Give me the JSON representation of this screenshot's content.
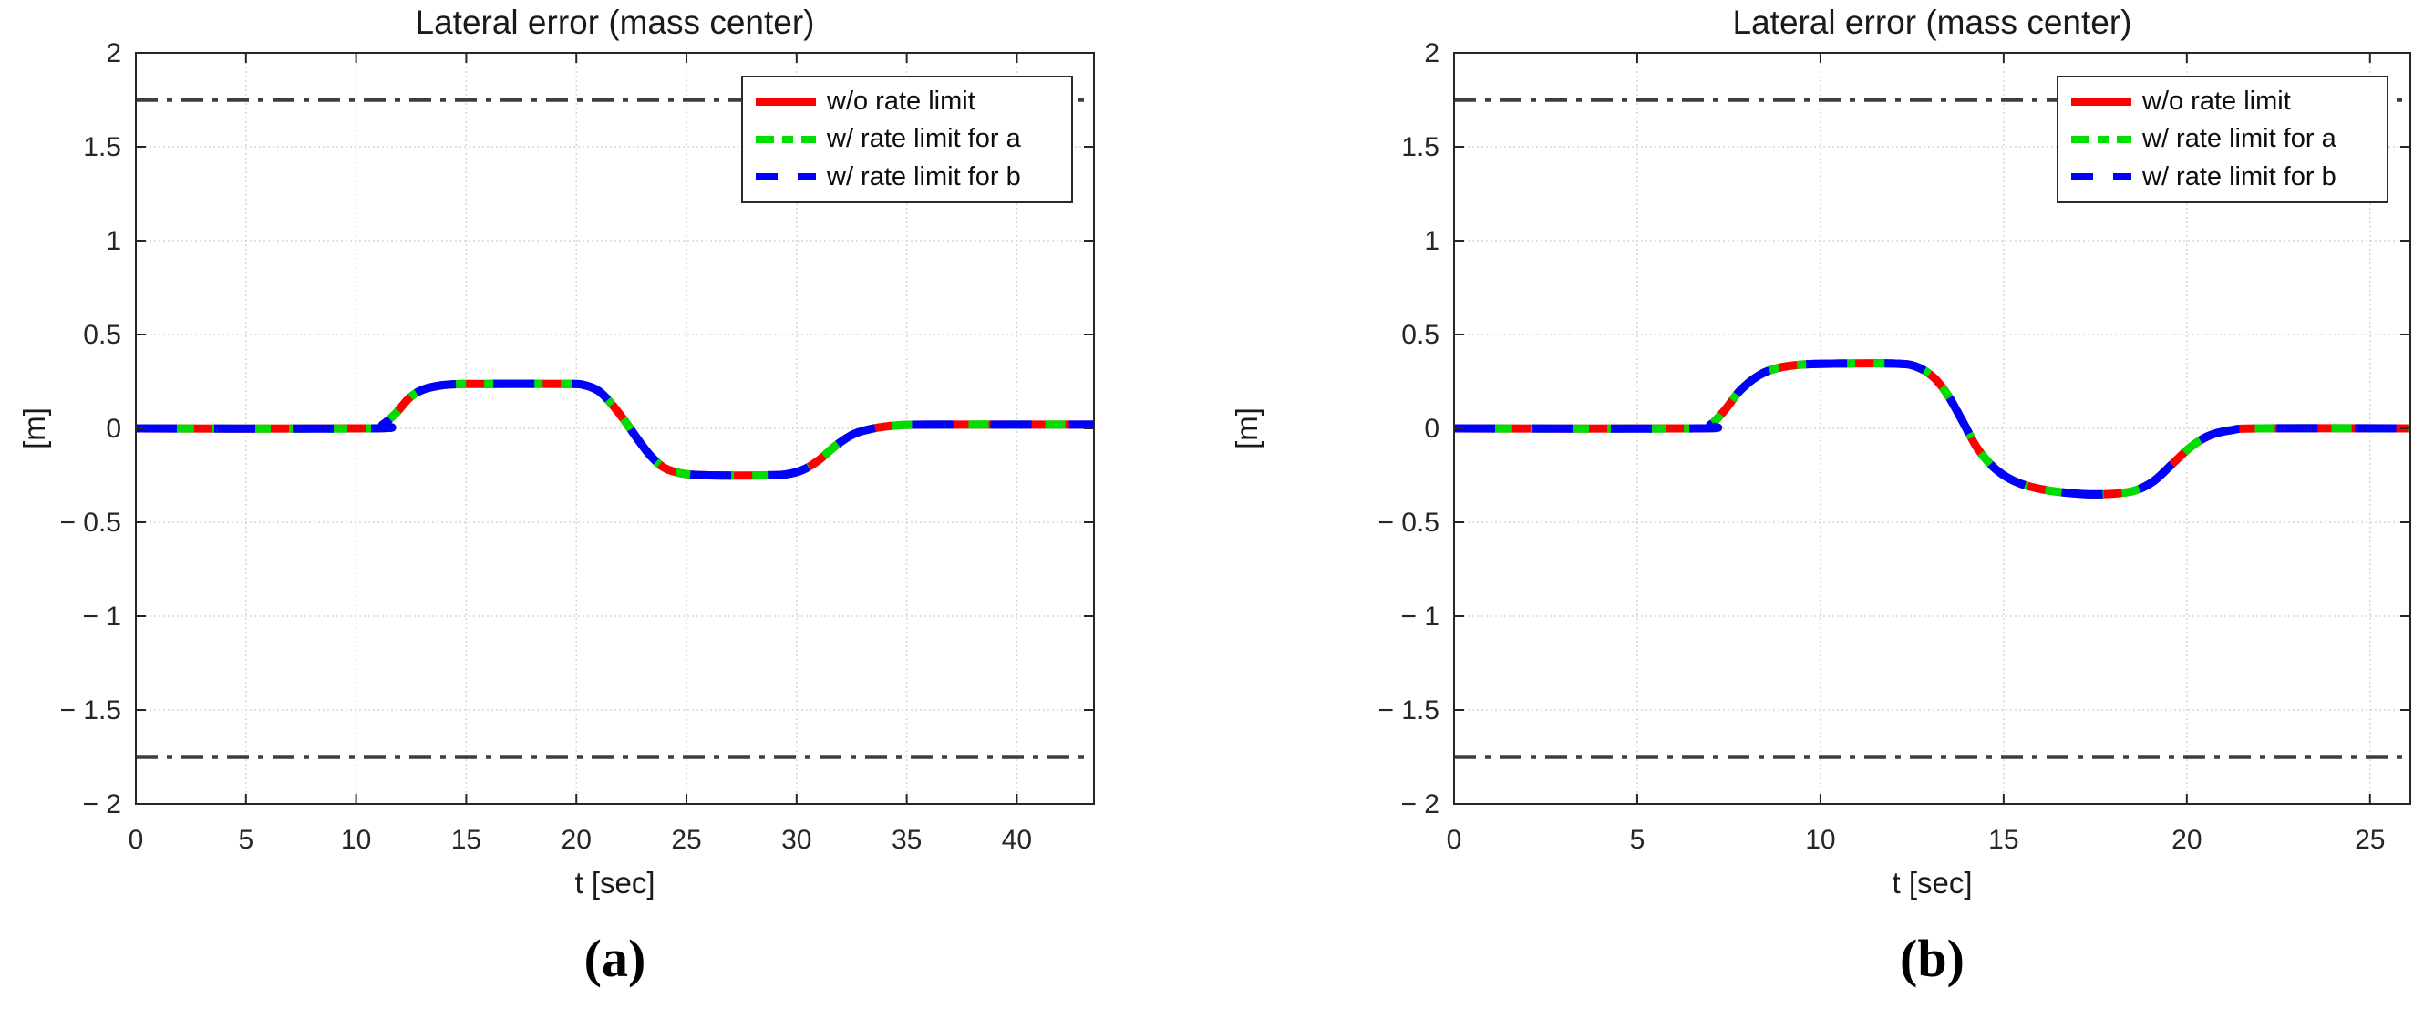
{
  "figure": {
    "background": "#ffffff"
  },
  "chart_data": [
    {
      "type": "line",
      "panel": "left",
      "title": "Lateral error (mass center)",
      "xlabel": "t [sec]",
      "ylabel": "[m]",
      "sublabel": "(a)",
      "xlim": [
        0,
        43.5
      ],
      "ylim": [
        -2,
        2
      ],
      "xticks": [
        0,
        5,
        10,
        15,
        20,
        25,
        30,
        35,
        40
      ],
      "xtick_labels": [
        "0",
        "5",
        "10",
        "15",
        "20",
        "25",
        "30",
        "35",
        "40"
      ],
      "yticks": [
        2,
        1.5,
        1,
        0.5,
        0,
        -0.5,
        -1,
        -1.5,
        -2
      ],
      "ytick_labels": [
        "2",
        "1.5",
        "1",
        "0.5",
        "0",
        "− 0.5",
        "− 1",
        "− 1.5",
        "− 2"
      ],
      "grid": true,
      "legend_position": "top-right",
      "limit_lines": {
        "values": [
          1.75,
          -1.75
        ],
        "color": "#3e3e3e",
        "style": "dash-dot"
      },
      "x": [
        0,
        10.7,
        11.2,
        11.8,
        12.4,
        13.0,
        13.8,
        14.7,
        16.0,
        19.5,
        20.3,
        21.0,
        21.6,
        22.2,
        22.8,
        23.4,
        24.0,
        24.8,
        26.0,
        28.5,
        29.5,
        30.3,
        31.0,
        31.8,
        32.6,
        33.5,
        34.5,
        36.0,
        43.5
      ],
      "series": [
        {
          "name": "w/o rate limit",
          "color": "#ff0000",
          "line_style": "solid",
          "y": [
            0,
            0,
            0.02,
            0.08,
            0.16,
            0.205,
            0.228,
            0.236,
            0.237,
            0.237,
            0.232,
            0.2,
            0.13,
            0.04,
            -0.06,
            -0.15,
            -0.21,
            -0.24,
            -0.25,
            -0.25,
            -0.245,
            -0.22,
            -0.17,
            -0.09,
            -0.03,
            0,
            0.015,
            0.02,
            0.02
          ]
        },
        {
          "name": "w/ rate limit for a",
          "color": "#00dd00",
          "line_style": "dash-dot",
          "y": [
            0,
            0,
            0.02,
            0.08,
            0.16,
            0.205,
            0.228,
            0.236,
            0.237,
            0.237,
            0.232,
            0.2,
            0.13,
            0.04,
            -0.06,
            -0.15,
            -0.21,
            -0.24,
            -0.25,
            -0.25,
            -0.245,
            -0.22,
            -0.17,
            -0.09,
            -0.03,
            0,
            0.015,
            0.02,
            0.02
          ]
        },
        {
          "name": "w/ rate limit for b",
          "color": "#0000ff",
          "line_style": "dashed",
          "y": [
            0,
            0,
            0.02,
            0.08,
            0.16,
            0.205,
            0.228,
            0.236,
            0.237,
            0.237,
            0.232,
            0.2,
            0.13,
            0.04,
            -0.06,
            -0.15,
            -0.21,
            -0.24,
            -0.25,
            -0.25,
            -0.245,
            -0.22,
            -0.17,
            -0.09,
            -0.03,
            0,
            0.015,
            0.02,
            0.02
          ]
        }
      ]
    },
    {
      "type": "line",
      "panel": "right",
      "title": "Lateral error (mass center)",
      "xlabel": "t [sec]",
      "ylabel": "[m]",
      "sublabel": "(b)",
      "xlim": [
        0,
        26.1
      ],
      "ylim": [
        -2,
        2
      ],
      "xticks": [
        0,
        5,
        10,
        15,
        20,
        25
      ],
      "xtick_labels": [
        "0",
        "5",
        "10",
        "15",
        "20",
        "25"
      ],
      "yticks": [
        2,
        1.5,
        1,
        0.5,
        0,
        -0.5,
        -1,
        -1.5,
        -2
      ],
      "ytick_labels": [
        "2",
        "1.5",
        "1",
        "0.5",
        "0",
        "− 0.5",
        "− 1",
        "− 1.5",
        "− 2"
      ],
      "grid": true,
      "legend_position": "top-right",
      "limit_lines": {
        "values": [
          1.75,
          -1.75
        ],
        "color": "#3e3e3e",
        "style": "dash-dot"
      },
      "x": [
        0,
        6.6,
        7.0,
        7.4,
        7.8,
        8.3,
        8.8,
        9.5,
        10.5,
        12.0,
        12.6,
        13.1,
        13.5,
        13.9,
        14.3,
        14.8,
        15.4,
        16.2,
        17.2,
        18.0,
        18.6,
        19.1,
        19.6,
        20.1,
        20.6,
        21.2,
        22.0,
        26.1
      ],
      "series": [
        {
          "name": "w/o rate limit",
          "color": "#ff0000",
          "line_style": "solid",
          "y": [
            0,
            0,
            0.02,
            0.1,
            0.2,
            0.28,
            0.32,
            0.34,
            0.345,
            0.345,
            0.33,
            0.27,
            0.17,
            0.03,
            -0.11,
            -0.22,
            -0.29,
            -0.33,
            -0.35,
            -0.348,
            -0.33,
            -0.28,
            -0.19,
            -0.1,
            -0.04,
            -0.01,
            0,
            0
          ]
        },
        {
          "name": "w/ rate limit for a",
          "color": "#00dd00",
          "line_style": "dash-dot",
          "y": [
            0,
            0,
            0.02,
            0.1,
            0.2,
            0.28,
            0.32,
            0.34,
            0.345,
            0.345,
            0.33,
            0.27,
            0.17,
            0.03,
            -0.11,
            -0.22,
            -0.29,
            -0.33,
            -0.35,
            -0.348,
            -0.33,
            -0.28,
            -0.19,
            -0.1,
            -0.04,
            -0.01,
            0,
            0
          ]
        },
        {
          "name": "w/ rate limit for b",
          "color": "#0000ff",
          "line_style": "dashed",
          "y": [
            0,
            0,
            0.02,
            0.1,
            0.2,
            0.28,
            0.32,
            0.34,
            0.345,
            0.345,
            0.33,
            0.27,
            0.17,
            0.03,
            -0.11,
            -0.22,
            -0.29,
            -0.33,
            -0.35,
            -0.348,
            -0.33,
            -0.28,
            -0.19,
            -0.1,
            -0.04,
            -0.01,
            0,
            0
          ]
        }
      ]
    }
  ]
}
